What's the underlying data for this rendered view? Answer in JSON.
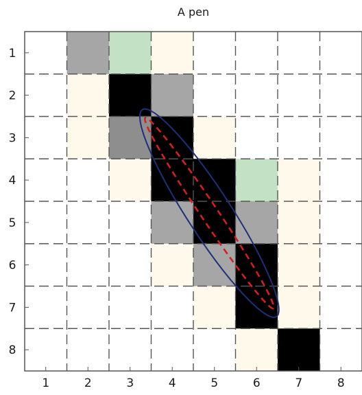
{
  "chart_data": {
    "type": "heatmap",
    "title": "A pen",
    "xlabel": "",
    "ylabel": "",
    "x_ticks": [
      "1",
      "2",
      "3",
      "4",
      "5",
      "6",
      "7",
      "8"
    ],
    "y_ticks": [
      "1",
      "2",
      "3",
      "4",
      "5",
      "6",
      "7",
      "8"
    ],
    "grid": "dashed",
    "palette": {
      "black": "#000000",
      "gray": "#a6a6a6",
      "dark_gray": "#8e8e8e",
      "green": "#c3e1c4",
      "cream": "#fef9ea",
      "white": "#ffffff"
    },
    "cells": [
      [
        "white",
        "gray",
        "green",
        "cream",
        "white",
        "white",
        "white",
        "white"
      ],
      [
        "white",
        "cream",
        "black",
        "gray",
        "white",
        "white",
        "white",
        "white"
      ],
      [
        "white",
        "cream",
        "dark_gray",
        "black",
        "cream",
        "white",
        "white",
        "white"
      ],
      [
        "white",
        "white",
        "cream",
        "black",
        "black",
        "green",
        "cream",
        "white"
      ],
      [
        "white",
        "white",
        "white",
        "gray",
        "black",
        "gray",
        "cream",
        "white"
      ],
      [
        "white",
        "white",
        "white",
        "cream",
        "gray",
        "black",
        "cream",
        "white"
      ],
      [
        "white",
        "white",
        "white",
        "white",
        "cream",
        "black",
        "cream",
        "white"
      ],
      [
        "white",
        "white",
        "white",
        "white",
        "white",
        "cream",
        "black",
        "white"
      ]
    ],
    "overlays": [
      {
        "shape": "ellipse",
        "style": "solid",
        "color": "#1f2f7a",
        "center": [
          4.88,
          4.78
        ],
        "semi_major": 2.92,
        "semi_minor": 0.52,
        "angle_deg": 57
      },
      {
        "shape": "ellipse",
        "style": "dashed",
        "color": "#d81e1e",
        "center": [
          4.88,
          4.78
        ],
        "semi_major": 2.72,
        "semi_minor": 0.2,
        "angle_deg": 56
      }
    ]
  }
}
